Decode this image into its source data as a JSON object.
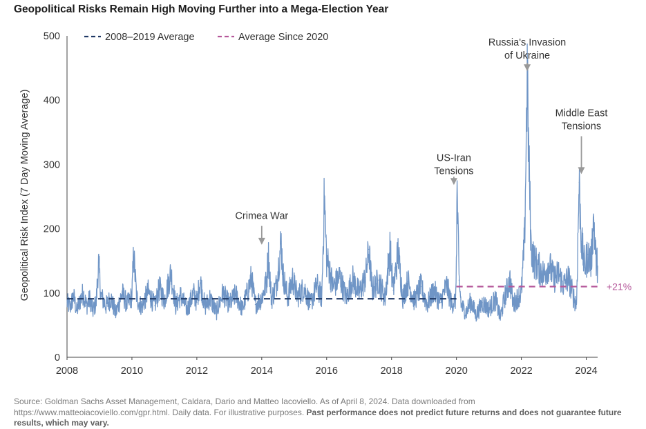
{
  "chart_data": {
    "type": "line",
    "title": "Geopolitical Risks Remain High Moving Further into a Mega-Election Year",
    "xlabel": "",
    "ylabel": "Geopolitical Risk Index (7 Day Moving Average)",
    "xlim": [
      2008,
      2024.35
    ],
    "ylim": [
      0,
      500
    ],
    "x_ticks": [
      "2008",
      "2010",
      "2012",
      "2014",
      "2016",
      "2018",
      "2020",
      "2022",
      "2024"
    ],
    "y_ticks": [
      "0",
      "100",
      "200",
      "300",
      "400",
      "500"
    ],
    "grid": false,
    "legend_position": "top-left",
    "series": [
      {
        "kind": "line",
        "color": "#6f95c6",
        "points": [
          [
            2008.0,
            85
          ],
          [
            2008.1,
            78
          ],
          [
            2008.2,
            95
          ],
          [
            2008.3,
            72
          ],
          [
            2008.4,
            88
          ],
          [
            2008.5,
            100
          ],
          [
            2008.6,
            80
          ],
          [
            2008.7,
            90
          ],
          [
            2008.8,
            72
          ],
          [
            2008.9,
            86
          ],
          [
            2008.97,
            148
          ],
          [
            2009.05,
            95
          ],
          [
            2009.2,
            80
          ],
          [
            2009.35,
            92
          ],
          [
            2009.5,
            68
          ],
          [
            2009.7,
            100
          ],
          [
            2009.85,
            82
          ],
          [
            2010.0,
            95
          ],
          [
            2010.05,
            160
          ],
          [
            2010.15,
            92
          ],
          [
            2010.3,
            78
          ],
          [
            2010.5,
            102
          ],
          [
            2010.7,
            80
          ],
          [
            2010.85,
            108
          ],
          [
            2011.0,
            88
          ],
          [
            2011.2,
            132
          ],
          [
            2011.35,
            80
          ],
          [
            2011.5,
            96
          ],
          [
            2011.7,
            74
          ],
          [
            2011.9,
            100
          ],
          [
            2012.0,
            85
          ],
          [
            2012.1,
            120
          ],
          [
            2012.25,
            78
          ],
          [
            2012.4,
            92
          ],
          [
            2012.6,
            70
          ],
          [
            2012.8,
            100
          ],
          [
            2013.0,
            82
          ],
          [
            2013.2,
            98
          ],
          [
            2013.4,
            75
          ],
          [
            2013.6,
            108
          ],
          [
            2013.68,
            124
          ],
          [
            2013.8,
            82
          ],
          [
            2014.0,
            92
          ],
          [
            2014.15,
            118
          ],
          [
            2014.2,
            162
          ],
          [
            2014.3,
            90
          ],
          [
            2014.45,
            112
          ],
          [
            2014.6,
            180
          ],
          [
            2014.65,
            130
          ],
          [
            2014.8,
            92
          ],
          [
            2014.95,
            122
          ],
          [
            2015.1,
            94
          ],
          [
            2015.3,
            108
          ],
          [
            2015.5,
            82
          ],
          [
            2015.7,
            112
          ],
          [
            2015.85,
            92
          ],
          [
            2015.93,
            252
          ],
          [
            2016.0,
            150
          ],
          [
            2016.05,
            145
          ],
          [
            2016.2,
            108
          ],
          [
            2016.4,
            126
          ],
          [
            2016.6,
            92
          ],
          [
            2016.8,
            122
          ],
          [
            2017.0,
            100
          ],
          [
            2017.2,
            124
          ],
          [
            2017.3,
            168
          ],
          [
            2017.4,
            104
          ],
          [
            2017.6,
            120
          ],
          [
            2017.8,
            92
          ],
          [
            2017.95,
            170
          ],
          [
            2018.05,
            104
          ],
          [
            2018.2,
            164
          ],
          [
            2018.35,
            92
          ],
          [
            2018.5,
            118
          ],
          [
            2018.7,
            88
          ],
          [
            2018.9,
            110
          ],
          [
            2019.1,
            82
          ],
          [
            2019.3,
            104
          ],
          [
            2019.5,
            85
          ],
          [
            2019.7,
            112
          ],
          [
            2019.85,
            82
          ],
          [
            2019.98,
            90
          ],
          [
            2020.02,
            260
          ],
          [
            2020.08,
            120
          ],
          [
            2020.15,
            80
          ],
          [
            2020.3,
            70
          ],
          [
            2020.45,
            88
          ],
          [
            2020.6,
            65
          ],
          [
            2020.8,
            85
          ],
          [
            2021.0,
            75
          ],
          [
            2021.2,
            90
          ],
          [
            2021.35,
            62
          ],
          [
            2021.5,
            96
          ],
          [
            2021.65,
            120
          ],
          [
            2021.75,
            82
          ],
          [
            2021.9,
            94
          ],
          [
            2022.0,
            100
          ],
          [
            2022.1,
            185
          ],
          [
            2022.18,
            435
          ],
          [
            2022.22,
            330
          ],
          [
            2022.3,
            170
          ],
          [
            2022.4,
            150
          ],
          [
            2022.55,
            138
          ],
          [
            2022.7,
            128
          ],
          [
            2022.85,
            145
          ],
          [
            2023.0,
            122
          ],
          [
            2023.15,
            130
          ],
          [
            2023.3,
            112
          ],
          [
            2023.45,
            124
          ],
          [
            2023.6,
            95
          ],
          [
            2023.7,
            82
          ],
          [
            2023.78,
            272
          ],
          [
            2023.85,
            180
          ],
          [
            2023.95,
            140
          ],
          [
            2024.05,
            160
          ],
          [
            2024.15,
            148
          ],
          [
            2024.23,
            218
          ],
          [
            2024.3,
            150
          ],
          [
            2024.35,
            142
          ]
        ]
      },
      {
        "name": "2008–2019 Average",
        "kind": "hline",
        "y": 91,
        "x_range": [
          2008,
          2020
        ],
        "color": "#1f3864",
        "style": "dashed"
      },
      {
        "name": "Average Since 2020",
        "kind": "hline",
        "y": 110,
        "x_range": [
          2020,
          2024.35
        ],
        "color": "#b5579a",
        "style": "dashed"
      }
    ],
    "annotations": [
      {
        "lines": [
          "Crimea War"
        ],
        "x": 2014.0,
        "y_text": 215,
        "arrow_from": 185,
        "arrow_to": 175
      },
      {
        "lines": [
          "US-Iran",
          "Tensions"
        ],
        "x": 2019.92,
        "y_text": 305,
        "arrow_from": 277,
        "arrow_to": 268
      },
      {
        "lines": [
          "Russia's Invasion",
          "of Ukraine"
        ],
        "x": 2022.18,
        "y_text": 485,
        "arrow_from": 450,
        "arrow_to": 445
      },
      {
        "lines": [
          "Middle East",
          "Tensions"
        ],
        "x": 2023.85,
        "y_text": 375,
        "arrow_from": 290,
        "arrow_to": 285
      }
    ],
    "pct_label": {
      "text": "+21%",
      "color": "#b5579a",
      "y": 110
    }
  },
  "source": {
    "text": "Source: Goldman Sachs Asset Management, Caldara, Dario and Matteo Iacoviello. As of April 8, 2024. Data downloaded from https://www.matteoiacoviello.com/gpr.html. Daily data. For illustrative purposes.",
    "bold": "Past performance does not predict future returns and does not guarantee future results, which may vary."
  }
}
